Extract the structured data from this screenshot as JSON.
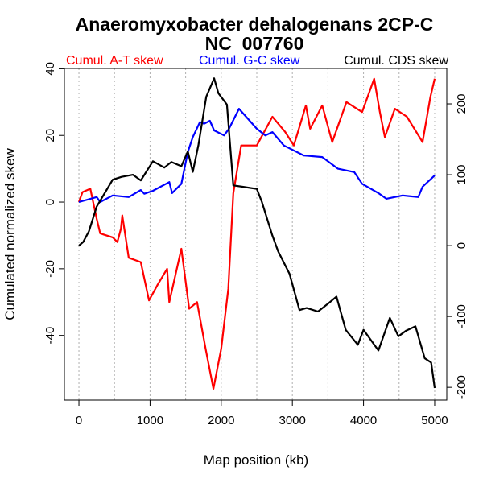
{
  "chart_data": {
    "type": "line",
    "title": [
      "Anaeromyxobacter dehalogenans 2CP-C",
      "NC_007760"
    ],
    "xlabel": "Map position (kb)",
    "ylabel": "Cumulated normalized skew",
    "xlim": [
      -204,
      5170
    ],
    "ylim_left": [
      -59.4,
      40.1
    ],
    "ylim_right": [
      -218,
      250
    ],
    "x_ticks": [
      0,
      1000,
      2000,
      3000,
      4000,
      5000
    ],
    "x_tick_labels": [
      "0",
      "1000",
      "2000",
      "3000",
      "4000",
      "5000"
    ],
    "left_ticks": [
      40,
      20,
      0,
      -20,
      -40
    ],
    "left_tick_labels": [
      "40",
      "20",
      "0",
      "-20",
      "-40"
    ],
    "right_ticks": [
      200,
      100,
      0,
      -100,
      -200
    ],
    "right_tick_labels": [
      "200",
      "100",
      "0",
      "-100",
      "-200"
    ],
    "grid_x": [
      0,
      500,
      1000,
      1500,
      2000,
      2500,
      3000,
      3500,
      4000,
      4500,
      5000
    ],
    "series": [
      {
        "name": "Cumul. A-T skew",
        "color": "#ff0000",
        "axis": "left",
        "x": [
          0,
          50,
          160,
          250,
          300,
          475,
          540,
          590,
          610,
          700,
          870,
          985,
          1100,
          1240,
          1270,
          1440,
          1550,
          1660,
          1780,
          1890,
          2000,
          2100,
          2170,
          2280,
          2400,
          2500,
          2720,
          2900,
          3020,
          3190,
          3250,
          3420,
          3560,
          3760,
          3980,
          4150,
          4230,
          4300,
          4440,
          4610,
          4830,
          4940,
          5000
        ],
        "y": [
          0,
          3,
          4,
          -5,
          -9.4,
          -10.6,
          -12,
          -8,
          -4,
          -16.7,
          -18,
          -29.5,
          -25,
          -20,
          -30,
          -14,
          -32,
          -30,
          -44,
          -56,
          -44,
          -26,
          2.6,
          17,
          17,
          17,
          25.6,
          21,
          17,
          29,
          22,
          29,
          18,
          30,
          27,
          37,
          27,
          19.5,
          28,
          25.6,
          18,
          31.6,
          37
        ]
      },
      {
        "name": "Cumul. G-C skew",
        "color": "#0000ff",
        "axis": "left",
        "x": [
          0,
          250,
          300,
          475,
          700,
          870,
          920,
          1040,
          1270,
          1310,
          1440,
          1530,
          1600,
          1700,
          1760,
          1840,
          1900,
          2040,
          2110,
          2250,
          2500,
          2620,
          2720,
          2880,
          3160,
          3420,
          3640,
          3870,
          3980,
          4210,
          4320,
          4550,
          4770,
          4830,
          5000
        ],
        "y": [
          0,
          1.5,
          0,
          2,
          1.5,
          3.6,
          2.5,
          3.4,
          6,
          2.7,
          5.5,
          15,
          19.5,
          24,
          23.5,
          24.4,
          21.5,
          20,
          22,
          28,
          22,
          20,
          21,
          17,
          14,
          13.5,
          10,
          9,
          5.5,
          2.7,
          1,
          2,
          1.5,
          4.6,
          8
        ]
      },
      {
        "name": "Cumul. CDS skew",
        "color": "#000000",
        "axis": "right",
        "x": [
          0,
          60,
          140,
          250,
          475,
          600,
          760,
          870,
          1040,
          1200,
          1300,
          1440,
          1530,
          1600,
          1680,
          1790,
          1900,
          1960,
          2080,
          2170,
          2300,
          2500,
          2570,
          2720,
          2800,
          2960,
          3100,
          3200,
          3360,
          3500,
          3620,
          3750,
          3920,
          4000,
          4210,
          4370,
          4490,
          4600,
          4730,
          4860,
          4950,
          5000
        ],
        "y": [
          0,
          5,
          20,
          55,
          93,
          97,
          100,
          92,
          119,
          110,
          118,
          112,
          133,
          104,
          142,
          210,
          236,
          215,
          199,
          85,
          83,
          80,
          62,
          14,
          -8,
          -40,
          -91,
          -88,
          -93,
          -82,
          -72,
          -119,
          -140,
          -119,
          -148,
          -102,
          -128,
          -120,
          -114,
          -159,
          -165,
          -201
        ]
      }
    ]
  }
}
